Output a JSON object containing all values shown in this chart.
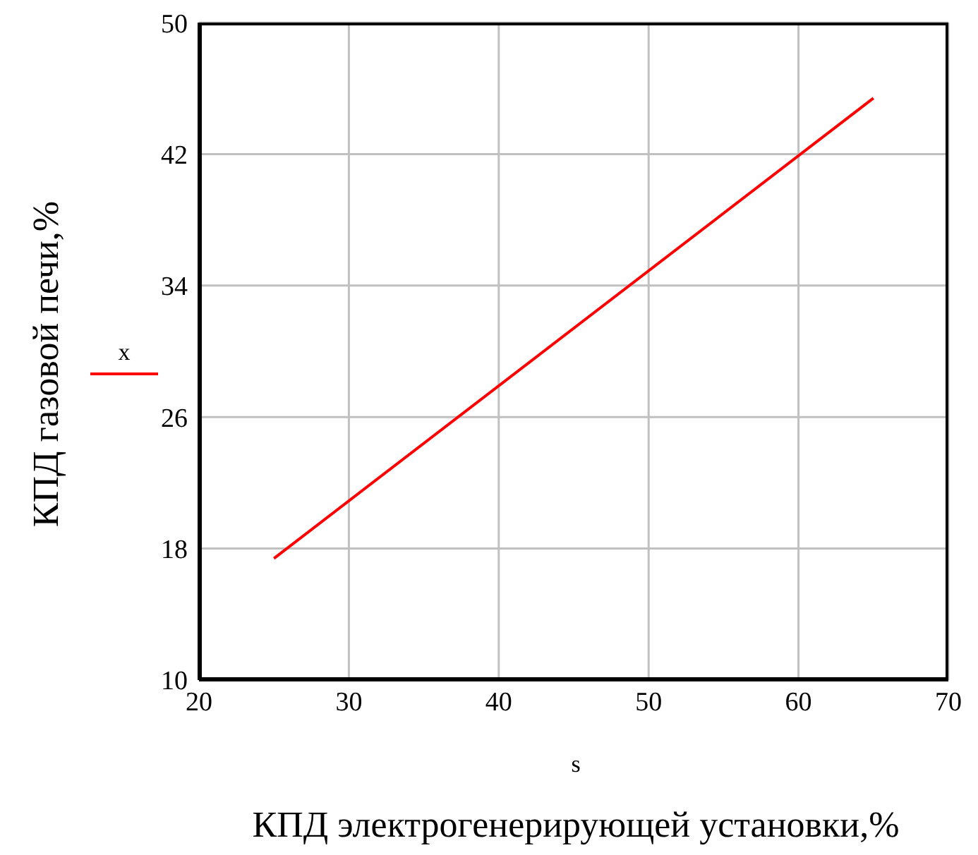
{
  "chart_data": {
    "type": "line",
    "xlabel": "КПД электрогенерирующей установки,%",
    "ylabel": "КПД газовой печи,%",
    "annotations": [
      "s"
    ],
    "x": [
      25,
      65
    ],
    "series": [
      {
        "name": "x",
        "color": "#ff0000",
        "values": [
          17.4,
          45.4
        ]
      }
    ],
    "xlim": [
      20,
      70
    ],
    "xticks": [
      20,
      30,
      40,
      50,
      60,
      70
    ],
    "ylim": [
      10,
      50
    ],
    "yticks": [
      10,
      18,
      26,
      34,
      42,
      50
    ],
    "grid": true,
    "legend": "left",
    "line_style": "solid",
    "marker": "none"
  }
}
